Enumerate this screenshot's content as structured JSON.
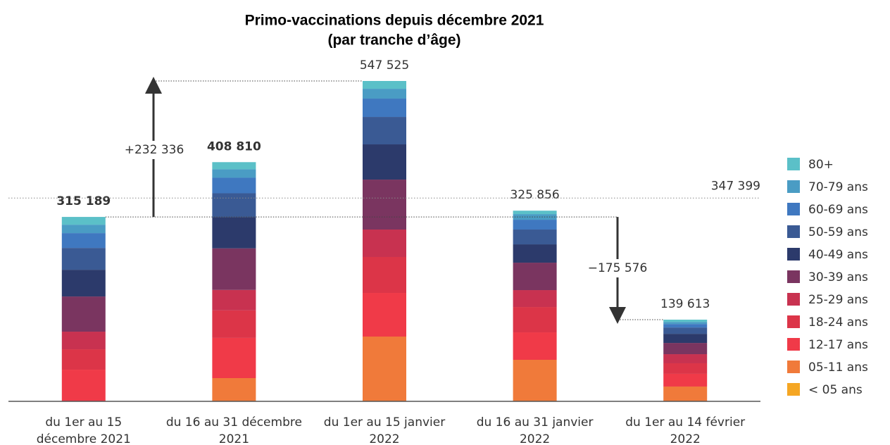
{
  "chart_data": {
    "type": "stacked_bar",
    "title": "Primo-vaccinations depuis décembre 2021",
    "subtitle": "(par tranche d’âge)",
    "categories": [
      [
        "du 1er au 15",
        "décembre 2021"
      ],
      [
        "du 16 au 31 décembre",
        "2021"
      ],
      [
        "du 1er au 15 janvier",
        "2022"
      ],
      [
        "du 16 au 31 janvier",
        "2022"
      ],
      [
        "du 1er au 14 février",
        "2022"
      ]
    ],
    "series": [
      {
        "name": "< 05 ans",
        "color": "#f5a623",
        "values": [
          0,
          0,
          0,
          0,
          0
        ]
      },
      {
        "name": "05-11 ans",
        "color": "#f07a3a",
        "values": [
          0,
          39700,
          110700,
          71000,
          25300
        ]
      },
      {
        "name": "12-17 ans",
        "color": "#f03a48",
        "values": [
          54100,
          68700,
          74600,
          46900,
          21700
        ]
      },
      {
        "name": "18-24 ans",
        "color": "#dc3548",
        "values": [
          34900,
          47000,
          61400,
          43300,
          18000
        ]
      },
      {
        "name": "25-29 ans",
        "color": "#c83250",
        "values": [
          30100,
          35000,
          46900,
          28900,
          15600
        ]
      },
      {
        "name": "30-39 ans",
        "color": "#7a3560",
        "values": [
          60100,
          71100,
          85400,
          46900,
          19200
        ]
      },
      {
        "name": "40-49 ans",
        "color": "#2c3a6b",
        "values": [
          45700,
          53100,
          60200,
          31300,
          15600
        ]
      },
      {
        "name": "50-59 ans",
        "color": "#3a5a94",
        "values": [
          37300,
          41000,
          46900,
          25300,
          10800
        ]
      },
      {
        "name": "60-69 ans",
        "color": "#3f78c0",
        "values": [
          25300,
          26500,
          31300,
          16800,
          6000
        ]
      },
      {
        "name": "70-79 ans",
        "color": "#4a9cc4",
        "values": [
          14400,
          14500,
          16800,
          9600,
          3600
        ]
      },
      {
        "name": "80+",
        "color": "#5bc0c8",
        "values": [
          13289,
          12210,
          13325,
          5856,
          3813
        ]
      }
    ],
    "totals": [
      315189,
      408810,
      547525,
      325856,
      139613
    ],
    "value_labels": [
      "315 189",
      "408 810",
      "547 525",
      "325 856",
      "139 613"
    ],
    "average": {
      "value": 347399,
      "label": "347 399"
    },
    "annotations": [
      "+232 336",
      "−175 576"
    ]
  }
}
